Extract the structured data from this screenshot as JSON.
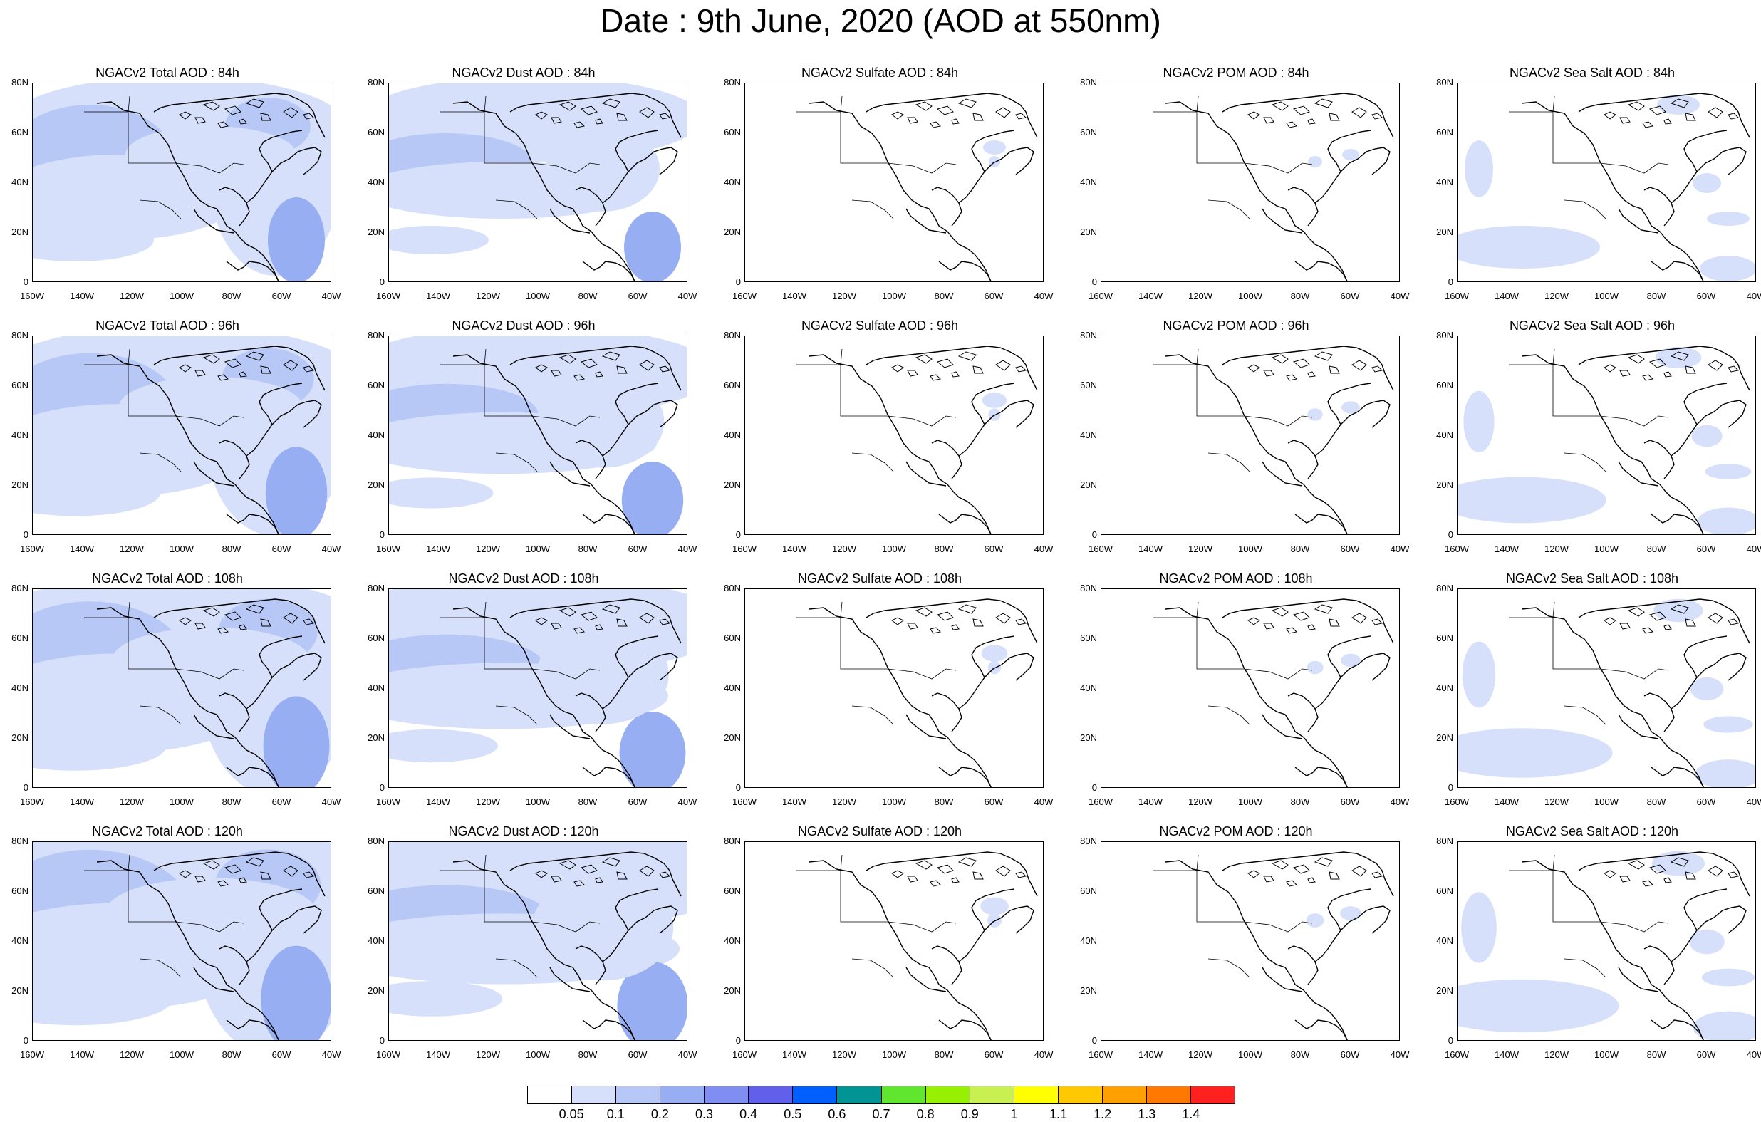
{
  "title": "Date : 9th June, 2020 (AOD at 550nm)",
  "lat_labels": [
    "80N",
    "60N",
    "40N",
    "20N",
    "0"
  ],
  "lon_labels": [
    "160W",
    "140W",
    "120W",
    "100W",
    "80W",
    "60W",
    "40W"
  ],
  "panels": [
    [
      "NGACv2 Total AOD : 84h",
      "NGACv2 Dust AOD : 84h",
      "NGACv2 Sulfate AOD : 84h",
      "NGACv2 POM AOD : 84h",
      "NGACv2 Sea Salt AOD : 84h"
    ],
    [
      "NGACv2 Total AOD : 96h",
      "NGACv2 Dust AOD : 96h",
      "NGACv2 Sulfate AOD : 96h",
      "NGACv2 POM AOD : 96h",
      "NGACv2 Sea Salt AOD : 96h"
    ],
    [
      "NGACv2 Total AOD : 108h",
      "NGACv2 Dust AOD : 108h",
      "NGACv2 Sulfate AOD : 108h",
      "NGACv2 POM AOD : 108h",
      "NGACv2 Sea Salt AOD : 108h"
    ],
    [
      "NGACv2 Total AOD : 120h",
      "NGACv2 Dust AOD : 120h",
      "NGACv2 Sulfate AOD : 120h",
      "NGACv2 POM AOD : 120h",
      "NGACv2 Sea Salt  AOD : 120h"
    ]
  ],
  "colorbar": {
    "colors": [
      "#ffffff",
      "#d6e0fa",
      "#b8c8f6",
      "#97aef2",
      "#7f8ef0",
      "#6060ea",
      "#0060ff",
      "#009494",
      "#60e62e",
      "#96f000",
      "#c8f050",
      "#ffff00",
      "#ffc800",
      "#ffa000",
      "#ff7800",
      "#ff2020"
    ],
    "labels": [
      "0.05",
      "0.1",
      "0.2",
      "0.3",
      "0.4",
      "0.5",
      "0.6",
      "0.7",
      "0.8",
      "0.9",
      "1",
      "1.1",
      "1.2",
      "1.3",
      "1.4"
    ]
  }
}
